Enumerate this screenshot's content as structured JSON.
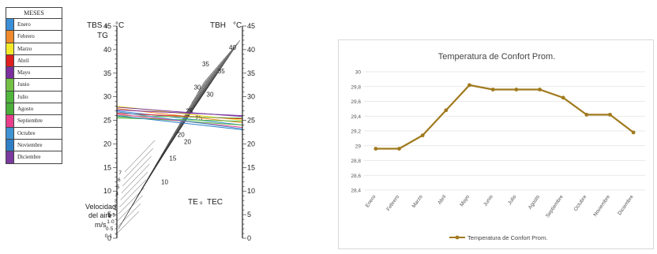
{
  "legend": {
    "title": "MESES",
    "items": [
      {
        "name": "Enero",
        "color": "#3a8fd6"
      },
      {
        "name": "Febrero",
        "color": "#f08a2c"
      },
      {
        "name": "Marzo",
        "color": "#f3ea2a"
      },
      {
        "name": "Abril",
        "color": "#e01f1f"
      },
      {
        "name": "Mayo",
        "color": "#7b2f9e"
      },
      {
        "name": "Junio",
        "color": "#74c044"
      },
      {
        "name": "Julio",
        "color": "#4fb63b"
      },
      {
        "name": "Agosto",
        "color": "#4cae3a"
      },
      {
        "name": "Septiembre",
        "color": "#e83e8c"
      },
      {
        "name": "Octubre",
        "color": "#3f93d3"
      },
      {
        "name": "Noviembre",
        "color": "#2f7fc7"
      },
      {
        "name": "Diciembre",
        "color": "#7a3a9e"
      }
    ]
  },
  "nomogram": {
    "left_axis_label_1": "TBS",
    "left_axis_label_sep": "o",
    "left_axis_unit": "°C",
    "left_axis_label_2": "TG",
    "right_axis_label": "TBH",
    "right_axis_unit": "°C",
    "center_label_1": "TE",
    "center_label_sep": "o",
    "center_label_2": "TEC",
    "velocity_label_1": "Velocidad",
    "velocity_label_2": "del aire",
    "velocity_unit": "m/s",
    "left_ticks": [
      0,
      5,
      10,
      15,
      20,
      25,
      30,
      35,
      40,
      45
    ],
    "right_ticks": [
      0,
      5,
      10,
      15,
      20,
      25,
      30,
      35,
      40,
      45
    ],
    "te_labels": [
      10,
      15,
      20,
      25,
      30,
      35
    ],
    "inner_labels": [
      20,
      25,
      30,
      35,
      40
    ],
    "velocity_labels": [
      "0·1",
      "0·5",
      "1·0",
      "1·5",
      "2",
      "3",
      "4",
      "5",
      "6",
      "7"
    ],
    "month_lines": [
      {
        "color": "#3a8fd6",
        "tbs": 27.0,
        "tbh": 24.0
      },
      {
        "color": "#f08a2c",
        "tbs": 27.5,
        "tbh": 24.5
      },
      {
        "color": "#f3ea2a",
        "tbs": 28.0,
        "tbh": 25.0
      },
      {
        "color": "#e01f1f",
        "tbs": 26.5,
        "tbh": 25.3
      },
      {
        "color": "#7b2f9e",
        "tbs": 27.2,
        "tbh": 26.0
      },
      {
        "color": "#74c044",
        "tbs": 26.0,
        "tbh": 25.5
      },
      {
        "color": "#4fb63b",
        "tbs": 25.5,
        "tbh": 24.8
      },
      {
        "color": "#4cae3a",
        "tbs": 25.8,
        "tbh": 24.0
      },
      {
        "color": "#e83e8c",
        "tbs": 26.3,
        "tbh": 23.5
      },
      {
        "color": "#3f93d3",
        "tbs": 26.8,
        "tbh": 23.2
      },
      {
        "color": "#2f7fc7",
        "tbs": 26.0,
        "tbh": 23.0
      },
      {
        "color": "#7a3a9e",
        "tbs": 27.8,
        "tbh": 25.8
      }
    ]
  },
  "chart_data": {
    "type": "line",
    "title": "Temperatura de Confort Prom.",
    "xlabel": "",
    "ylabel": "",
    "categories": [
      "Enero",
      "Febrero",
      "Marzo",
      "Abril",
      "Mayo",
      "Junio",
      "Julio",
      "Agosto",
      "Septiembre",
      "Octubre",
      "Noviembre",
      "Diciembre"
    ],
    "series": [
      {
        "name": "Temperatura de Confort Prom.",
        "color": "#a07a1e",
        "values": [
          28.96,
          28.96,
          29.14,
          29.48,
          29.82,
          29.76,
          29.76,
          29.76,
          29.65,
          29.42,
          29.42,
          29.18
        ]
      }
    ],
    "ylim": [
      28.4,
      30.0
    ],
    "yticks": [
      "28,4",
      "28,6",
      "28,8",
      "29",
      "29,2",
      "29,4",
      "29,6",
      "29,8",
      "30"
    ],
    "grid": true,
    "legend": "bottom"
  }
}
